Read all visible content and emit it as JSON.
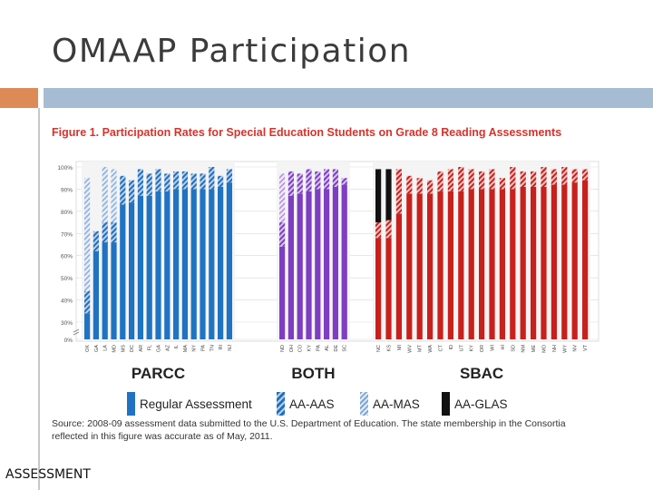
{
  "slide": {
    "title": "OMAAP Participation",
    "footer_label": "ASSESSMENT"
  },
  "figure": {
    "title": "Figure 1. Participation Rates for Special Education Students on Grade 8 Reading Assessments",
    "source": "Source: 2008-09 assessment data submitted to the U.S. Department of Education. The state membership in the Consortia reflected in this figure was accurate as of May, 2011."
  },
  "colors": {
    "accent_orange": "#dd8a57",
    "accent_blue_bar": "#a6bcd3",
    "title_red": "#d6332c",
    "parcc": "#1f73c2",
    "both": "#7d3ec2",
    "sbac": "#c8201c"
  },
  "chart_data": {
    "type": "bar",
    "stacked": true,
    "title": "Figure 1. Participation Rates for Special Education Students on Grade 8 Reading Assessments",
    "ylabel": "",
    "ylim": [
      0,
      100
    ],
    "y_ticks": [
      "0%",
      "30%",
      "40%",
      "50%",
      "60%",
      "70%",
      "80%",
      "90%",
      "100%"
    ],
    "axis_break": true,
    "segments": [
      "Regular Assessment",
      "AA-AAS",
      "AA-MAS",
      "AA-GLAS"
    ],
    "groups": [
      {
        "name": "PARCC",
        "states": [
          {
            "state": "OK",
            "values": [
              34,
              10,
              51,
              0
            ]
          },
          {
            "state": "GA",
            "values": [
              62,
              9,
              0,
              0
            ]
          },
          {
            "state": "LA",
            "values": [
              66,
              9,
              25,
              0
            ]
          },
          {
            "state": "MD",
            "values": [
              66,
              9,
              24,
              0
            ]
          },
          {
            "state": "MS",
            "values": [
              83,
              13,
              0,
              0
            ]
          },
          {
            "state": "DC",
            "values": [
              84,
              10,
              0,
              0
            ]
          },
          {
            "state": "AR",
            "values": [
              87,
              12,
              0,
              0
            ]
          },
          {
            "state": "FL",
            "values": [
              87,
              10,
              0,
              0
            ]
          },
          {
            "state": "GA",
            "values": [
              89,
              10,
              0,
              0
            ]
          },
          {
            "state": "AZ",
            "values": [
              89,
              8,
              0,
              0
            ]
          },
          {
            "state": "IL",
            "values": [
              90,
              8,
              0,
              0
            ]
          },
          {
            "state": "MA",
            "values": [
              90,
              8,
              0,
              0
            ]
          },
          {
            "state": "NY",
            "values": [
              90,
              7,
              0,
              0
            ]
          },
          {
            "state": "PA",
            "values": [
              90,
              7,
              0,
              0
            ]
          },
          {
            "state": "TN",
            "values": [
              90,
              10,
              0,
              0
            ]
          },
          {
            "state": "RI",
            "values": [
              91,
              5,
              0,
              0
            ]
          },
          {
            "state": "NJ",
            "values": [
              93,
              6,
              0,
              0
            ]
          }
        ]
      },
      {
        "name": "BOTH",
        "states": [
          {
            "state": "ND",
            "values": [
              64,
              11,
              22,
              0
            ]
          },
          {
            "state": "OH",
            "values": [
              87,
              11,
              0,
              0
            ]
          },
          {
            "state": "CO",
            "values": [
              88,
              9,
              0,
              0
            ]
          },
          {
            "state": "KY",
            "values": [
              89,
              10,
              0,
              0
            ]
          },
          {
            "state": "PA",
            "values": [
              90,
              8,
              0,
              0
            ]
          },
          {
            "state": "AL",
            "values": [
              90,
              9,
              0,
              0
            ]
          },
          {
            "state": "DE",
            "values": [
              91,
              8,
              0,
              0
            ]
          },
          {
            "state": "SC",
            "values": [
              92,
              3,
              0,
              0
            ]
          }
        ]
      },
      {
        "name": "SBAC",
        "states": [
          {
            "state": "NC",
            "values": [
              68,
              7,
              0,
              24
            ]
          },
          {
            "state": "KS",
            "values": [
              68,
              8,
              0,
              23
            ]
          },
          {
            "state": "MI",
            "values": [
              79,
              20,
              0,
              0
            ]
          },
          {
            "state": "WV",
            "values": [
              88,
              8,
              0,
              0
            ]
          },
          {
            "state": "MT",
            "values": [
              88,
              7,
              0,
              0
            ]
          },
          {
            "state": "WA",
            "values": [
              88,
              6,
              0,
              0
            ]
          },
          {
            "state": "CT",
            "values": [
              89,
              9,
              0,
              0
            ]
          },
          {
            "state": "ID",
            "values": [
              89,
              10,
              0,
              0
            ]
          },
          {
            "state": "UT",
            "values": [
              89,
              11,
              0,
              0
            ]
          },
          {
            "state": "KY",
            "values": [
              90,
              9,
              0,
              0
            ]
          },
          {
            "state": "OR",
            "values": [
              90,
              8,
              0,
              0
            ]
          },
          {
            "state": "WI",
            "values": [
              90,
              9,
              0,
              0
            ]
          },
          {
            "state": "HI",
            "values": [
              90,
              5,
              0,
              0
            ]
          },
          {
            "state": "SD",
            "values": [
              90,
              10,
              0,
              0
            ]
          },
          {
            "state": "NM",
            "values": [
              91,
              7,
              0,
              0
            ]
          },
          {
            "state": "ME",
            "values": [
              91,
              7,
              0,
              0
            ]
          },
          {
            "state": "MO",
            "values": [
              91,
              9,
              0,
              0
            ]
          },
          {
            "state": "NH",
            "values": [
              92,
              7,
              0,
              0
            ]
          },
          {
            "state": "WY",
            "values": [
              92,
              8,
              0,
              0
            ]
          },
          {
            "state": "NV",
            "values": [
              93,
              6,
              0,
              0
            ]
          },
          {
            "state": "VT",
            "values": [
              94,
              5,
              0,
              0
            ]
          }
        ]
      }
    ],
    "legend": [
      {
        "label": "Regular Assessment",
        "style": "solid"
      },
      {
        "label": "AA-AAS",
        "style": "hatched"
      },
      {
        "label": "AA-MAS",
        "style": "light-hatched"
      },
      {
        "label": "AA-GLAS",
        "style": "black"
      }
    ]
  }
}
